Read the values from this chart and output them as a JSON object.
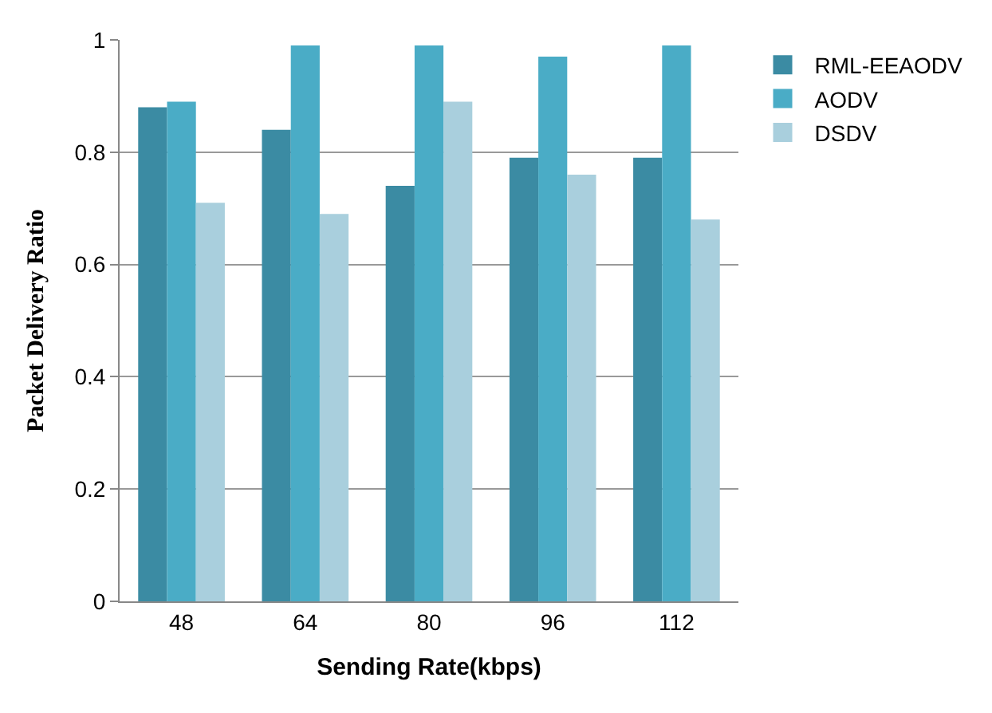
{
  "chart_data": {
    "type": "bar",
    "xlabel": "Sending Rate(kbps)",
    "ylabel": "Packet Delivery Ratio",
    "categories": [
      "48",
      "64",
      "80",
      "96",
      "112"
    ],
    "series": [
      {
        "name": "RML-EEAODV",
        "color": "#3b8ba3",
        "values": [
          0.88,
          0.84,
          0.74,
          0.79,
          0.79
        ]
      },
      {
        "name": "AODV",
        "color": "#4aacc6",
        "values": [
          0.89,
          0.99,
          0.99,
          0.97,
          0.99
        ]
      },
      {
        "name": "DSDV",
        "color": "#a9cfdd",
        "values": [
          0.71,
          0.69,
          0.89,
          0.76,
          0.68
        ]
      }
    ],
    "ylim": [
      0,
      1
    ],
    "yticks": [
      0,
      {
        "value": 0.2,
        "label": "0.2"
      },
      {
        "value": 0.4,
        "label": "0.4"
      },
      {
        "value": 0.6,
        "label": "0.6"
      },
      {
        "value": 0.8,
        "label": "0.8"
      },
      1
    ],
    "grid": "y",
    "legend": "right"
  }
}
